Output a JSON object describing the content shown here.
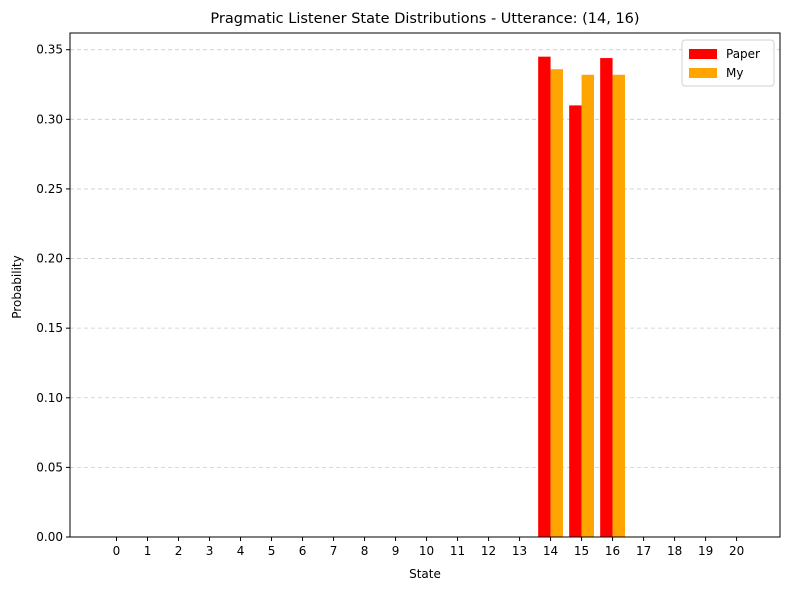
{
  "chart_data": {
    "type": "bar",
    "title": "Pragmatic Listener State Distributions - Utterance: (14, 16)",
    "xlabel": "State",
    "ylabel": "Probability",
    "categories": [
      "0",
      "1",
      "2",
      "3",
      "4",
      "5",
      "6",
      "7",
      "8",
      "9",
      "10",
      "11",
      "12",
      "13",
      "14",
      "15",
      "16",
      "17",
      "18",
      "19",
      "20"
    ],
    "series": [
      {
        "name": "Paper",
        "color": "#ff0000",
        "values": [
          0,
          0,
          0,
          0,
          0,
          0,
          0,
          0,
          0,
          0,
          0,
          0,
          0,
          0,
          0.345,
          0.31,
          0.344,
          0,
          0,
          0,
          0
        ]
      },
      {
        "name": "My",
        "color": "#ffa500",
        "values": [
          0,
          0,
          0,
          0,
          0,
          0,
          0,
          0,
          0,
          0,
          0,
          0,
          0,
          0,
          0.336,
          0.332,
          0.332,
          0,
          0,
          0,
          0
        ]
      }
    ],
    "yticks": [
      "0.00",
      "0.05",
      "0.10",
      "0.15",
      "0.20",
      "0.25",
      "0.30",
      "0.35"
    ],
    "ylim": [
      0,
      0.362
    ],
    "grid": "y-dashed",
    "legend_position": "top-right"
  }
}
